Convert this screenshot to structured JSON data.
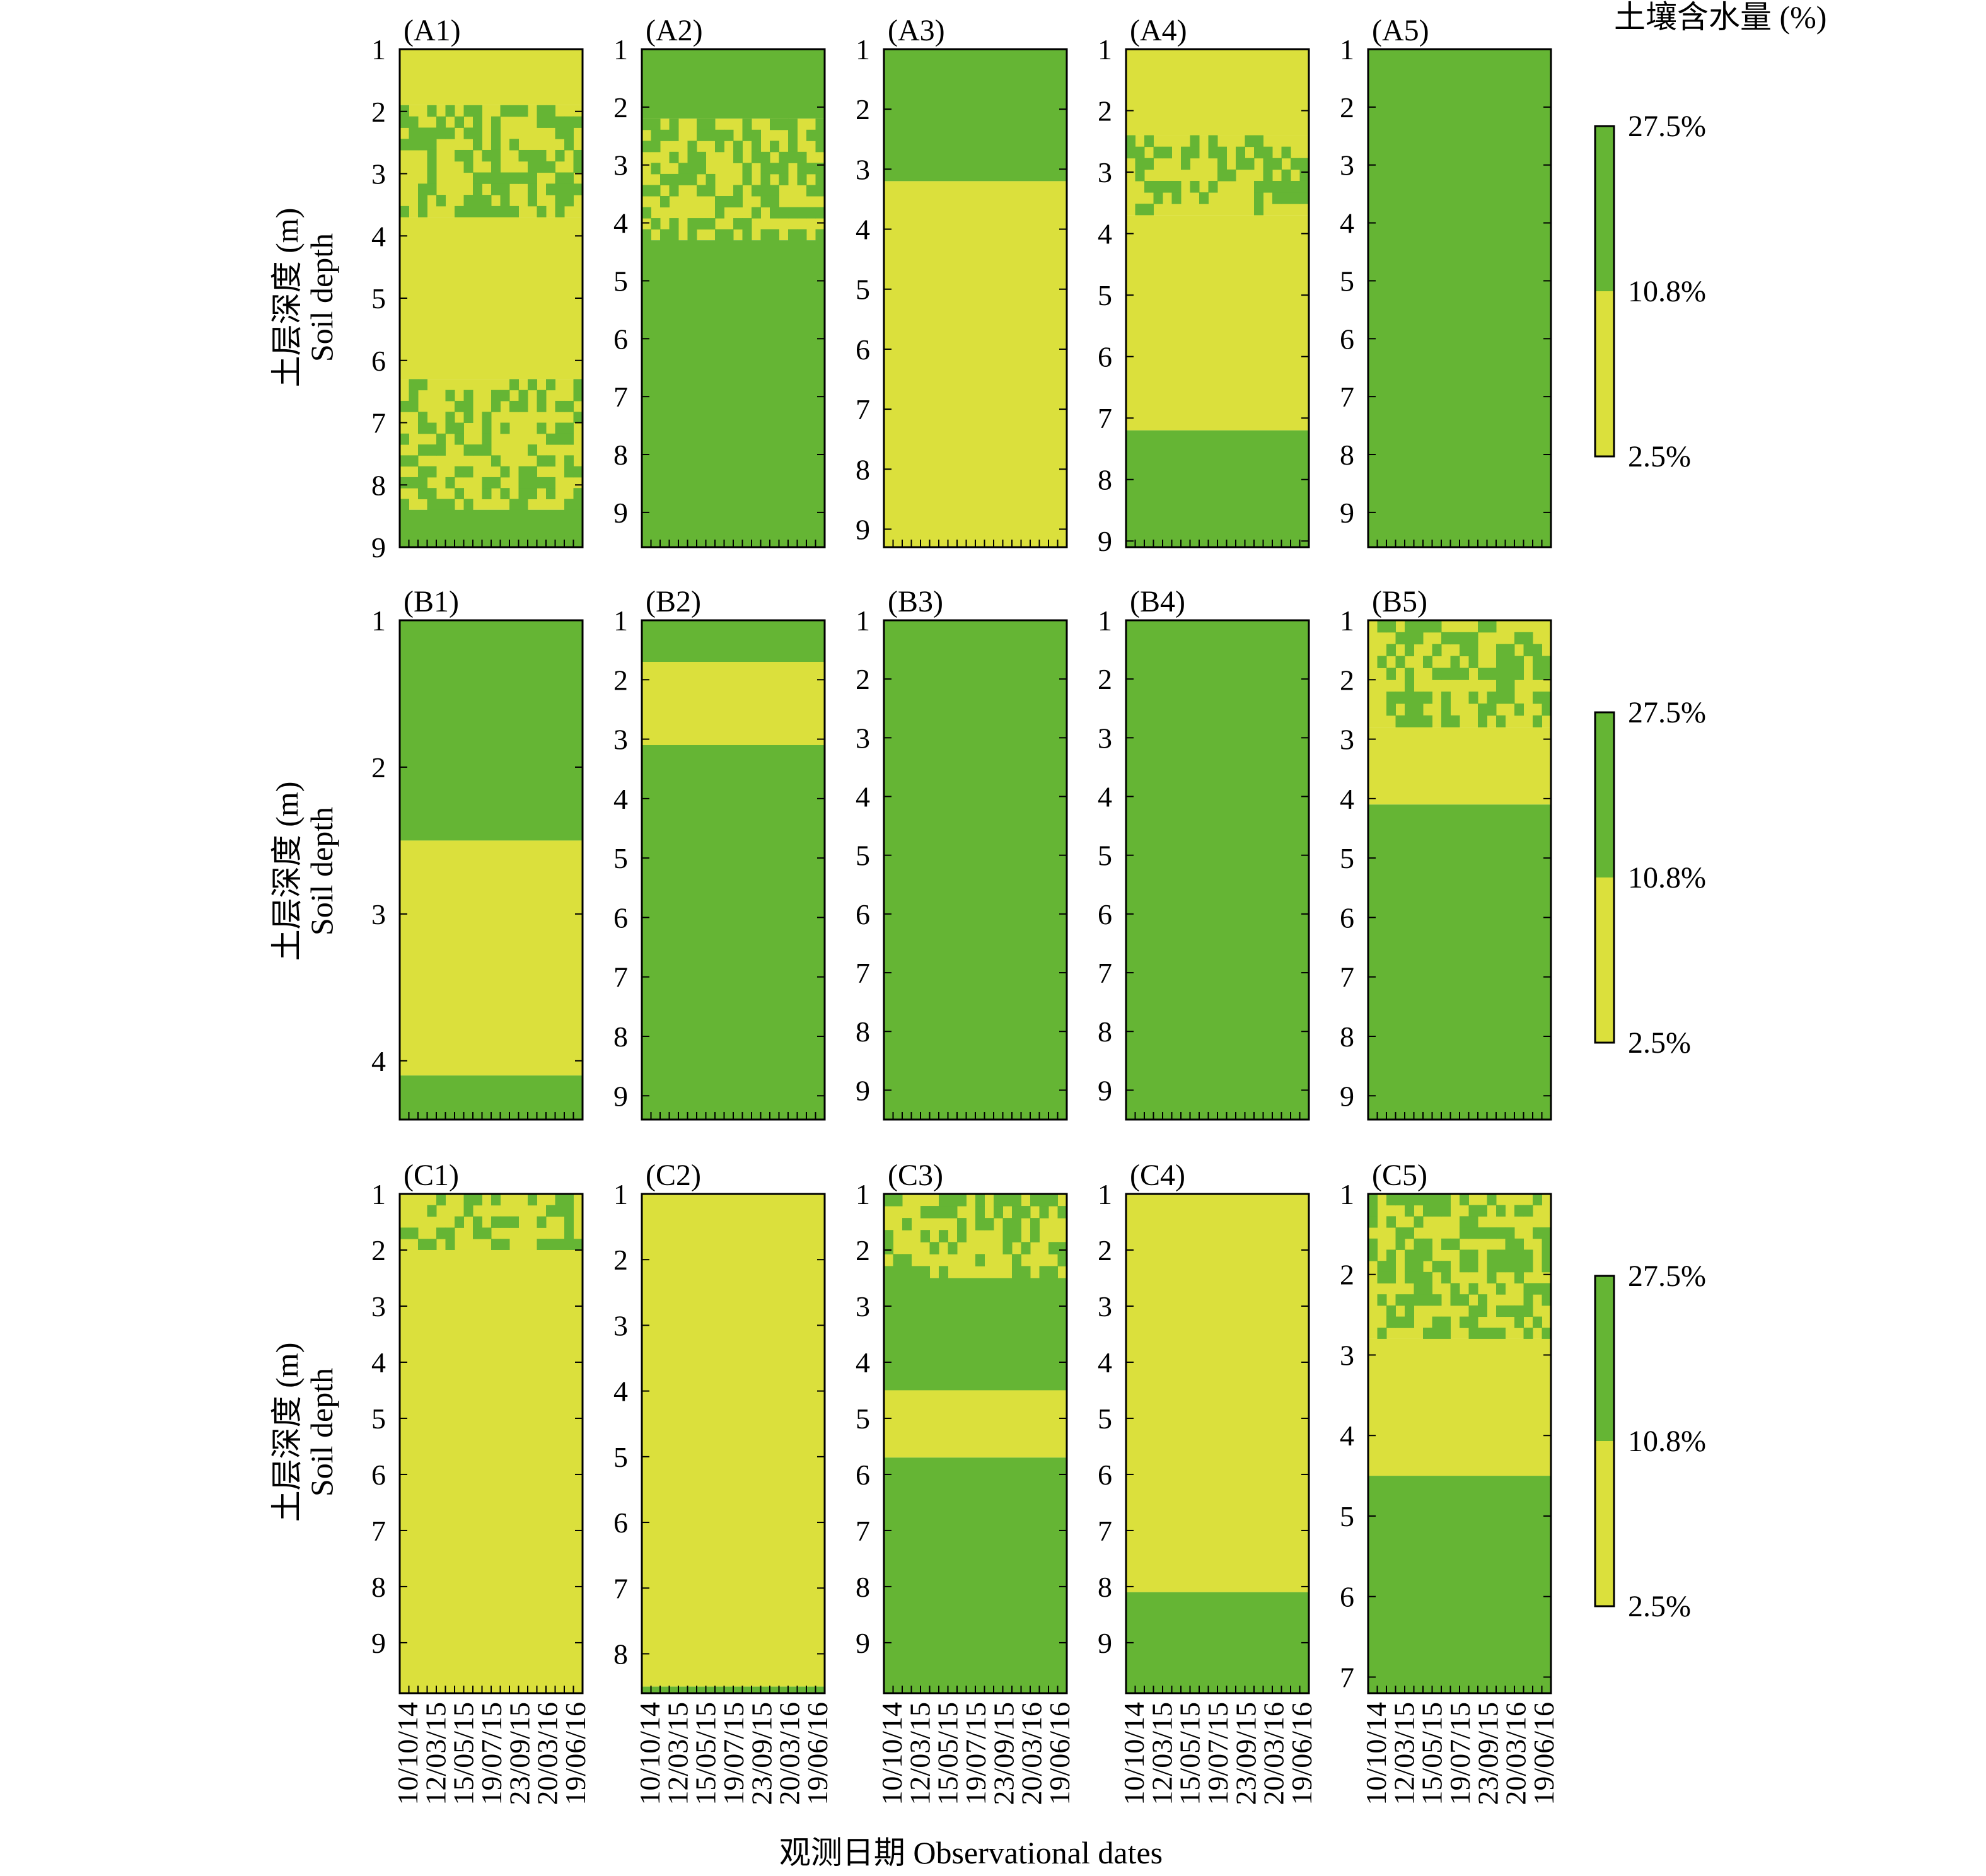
{
  "colors": {
    "wet": "#65b534",
    "dry": "#dbe03c",
    "frame": "#000000"
  },
  "chart_data": {
    "type": "heatmap",
    "colorbar_title": "土壤含水量 (%)",
    "colorbar_levels": [
      "27.5%",
      "10.8%",
      "2.5%"
    ],
    "color_classes": {
      "dry": "2.5%–10.8%",
      "wet": "10.8%–27.5%"
    },
    "ylabel_cn": "土层深度 (m)",
    "ylabel_en": "Soil depth",
    "xlabel": "观测日期 Observational dates",
    "x_dates": [
      "10/10/14",
      "12/03/15",
      "15/05/15",
      "19/07/15",
      "23/09/15",
      "20/03/16",
      "19/06/16"
    ],
    "panels": [
      {
        "id": "A1",
        "label": "(A1)",
        "depth_max": 9,
        "depth_ticks": [
          "1",
          "2",
          "3",
          "4",
          "5",
          "6",
          "7",
          "8",
          "9"
        ],
        "layers": [
          [
            1,
            1.9,
            "dry"
          ],
          [
            1.9,
            3.7,
            "mixed"
          ],
          [
            3.7,
            4.2,
            "dry"
          ],
          [
            4.2,
            6.3,
            "dry"
          ],
          [
            6.3,
            8.4,
            "mixed"
          ],
          [
            8.4,
            9,
            "wet"
          ]
        ]
      },
      {
        "id": "A2",
        "label": "(A2)",
        "depth_max": 9.6,
        "depth_ticks": [
          "1",
          "2",
          "3",
          "4",
          "5",
          "6",
          "7",
          "8",
          "9"
        ],
        "layers": [
          [
            1,
            2.2,
            "wet"
          ],
          [
            2.2,
            4.3,
            "mixed"
          ],
          [
            4.3,
            9.6,
            "wet"
          ]
        ]
      },
      {
        "id": "A3",
        "label": "(A3)",
        "depth_max": 9.3,
        "depth_ticks": [
          "1",
          "2",
          "3",
          "4",
          "5",
          "6",
          "7",
          "8",
          "9"
        ],
        "layers": [
          [
            1,
            3.2,
            "wet"
          ],
          [
            3.2,
            9.3,
            "dry"
          ]
        ]
      },
      {
        "id": "A4",
        "label": "(A4)",
        "depth_max": 9.1,
        "depth_ticks": [
          "1",
          "2",
          "3",
          "4",
          "5",
          "6",
          "7",
          "8",
          "9"
        ],
        "layers": [
          [
            1,
            2.4,
            "dry"
          ],
          [
            2.4,
            3.7,
            "mixed"
          ],
          [
            3.7,
            7.2,
            "dry"
          ],
          [
            7.2,
            9.1,
            "wet"
          ]
        ]
      },
      {
        "id": "A5",
        "label": "(A5)",
        "depth_max": 9.6,
        "depth_ticks": [
          "1",
          "2",
          "3",
          "4",
          "5",
          "6",
          "7",
          "8",
          "9"
        ],
        "layers": [
          [
            1,
            9.6,
            "wet"
          ]
        ]
      },
      {
        "id": "B1",
        "label": "(B1)",
        "depth_max": 4.4,
        "depth_ticks": [
          "1",
          "2",
          "3",
          "4"
        ],
        "layers": [
          [
            1,
            2.5,
            "wet"
          ],
          [
            2.5,
            4.1,
            "dry"
          ],
          [
            4.1,
            4.4,
            "wet"
          ]
        ]
      },
      {
        "id": "B2",
        "label": "(B2)",
        "depth_max": 9.4,
        "depth_ticks": [
          "1",
          "2",
          "3",
          "4",
          "5",
          "6",
          "7",
          "8",
          "9"
        ],
        "layers": [
          [
            1,
            1.7,
            "wet"
          ],
          [
            1.7,
            3.1,
            "dry"
          ],
          [
            3.1,
            9.4,
            "wet"
          ]
        ]
      },
      {
        "id": "B3",
        "label": "(B3)",
        "depth_max": 9.5,
        "depth_ticks": [
          "1",
          "2",
          "3",
          "4",
          "5",
          "6",
          "7",
          "8",
          "9"
        ],
        "layers": [
          [
            1,
            9.5,
            "wet"
          ]
        ]
      },
      {
        "id": "B4",
        "label": "(B4)",
        "depth_max": 9.5,
        "depth_ticks": [
          "1",
          "2",
          "3",
          "4",
          "5",
          "6",
          "7",
          "8",
          "9"
        ],
        "layers": [
          [
            1,
            9.5,
            "wet"
          ]
        ]
      },
      {
        "id": "B5",
        "label": "(B5)",
        "depth_max": 9.4,
        "depth_ticks": [
          "1",
          "2",
          "3",
          "4",
          "5",
          "6",
          "7",
          "8",
          "9"
        ],
        "layers": [
          [
            1,
            2.8,
            "mixed"
          ],
          [
            2.8,
            4.1,
            "dry"
          ],
          [
            4.1,
            9.4,
            "wet"
          ]
        ]
      },
      {
        "id": "C1",
        "label": "(C1)",
        "depth_max": 9.9,
        "depth_ticks": [
          "1",
          "2",
          "3",
          "4",
          "5",
          "6",
          "7",
          "8",
          "9"
        ],
        "layers": [
          [
            1,
            2,
            "mixed"
          ],
          [
            2,
            9.9,
            "dry"
          ]
        ]
      },
      {
        "id": "C2",
        "label": "(C2)",
        "depth_max": 8.6,
        "depth_ticks": [
          "1",
          "2",
          "3",
          "4",
          "5",
          "6",
          "7",
          "8"
        ],
        "layers": [
          [
            1,
            8.5,
            "dry"
          ],
          [
            8.5,
            8.6,
            "wet"
          ]
        ]
      },
      {
        "id": "C3",
        "label": "(C3)",
        "depth_max": 9.9,
        "depth_ticks": [
          "1",
          "2",
          "3",
          "4",
          "5",
          "6",
          "7",
          "8",
          "9"
        ],
        "layers": [
          [
            1,
            2.5,
            "mixed"
          ],
          [
            2.5,
            4.5,
            "wet"
          ],
          [
            4.5,
            5.7,
            "dry"
          ],
          [
            5.7,
            9.9,
            "wet"
          ]
        ]
      },
      {
        "id": "C4",
        "label": "(C4)",
        "depth_max": 9.9,
        "depth_ticks": [
          "1",
          "2",
          "3",
          "4",
          "5",
          "6",
          "7",
          "8",
          "9"
        ],
        "layers": [
          [
            1,
            8.1,
            "dry"
          ],
          [
            8.1,
            9.9,
            "wet"
          ]
        ]
      },
      {
        "id": "C5",
        "label": "(C5)",
        "depth_max": 7.2,
        "depth_ticks": [
          "1",
          "2",
          "3",
          "4",
          "5",
          "6",
          "7"
        ],
        "layers": [
          [
            1,
            2.8,
            "mixed"
          ],
          [
            2.8,
            4.5,
            "dry"
          ],
          [
            4.5,
            7.2,
            "wet"
          ]
        ]
      }
    ]
  }
}
